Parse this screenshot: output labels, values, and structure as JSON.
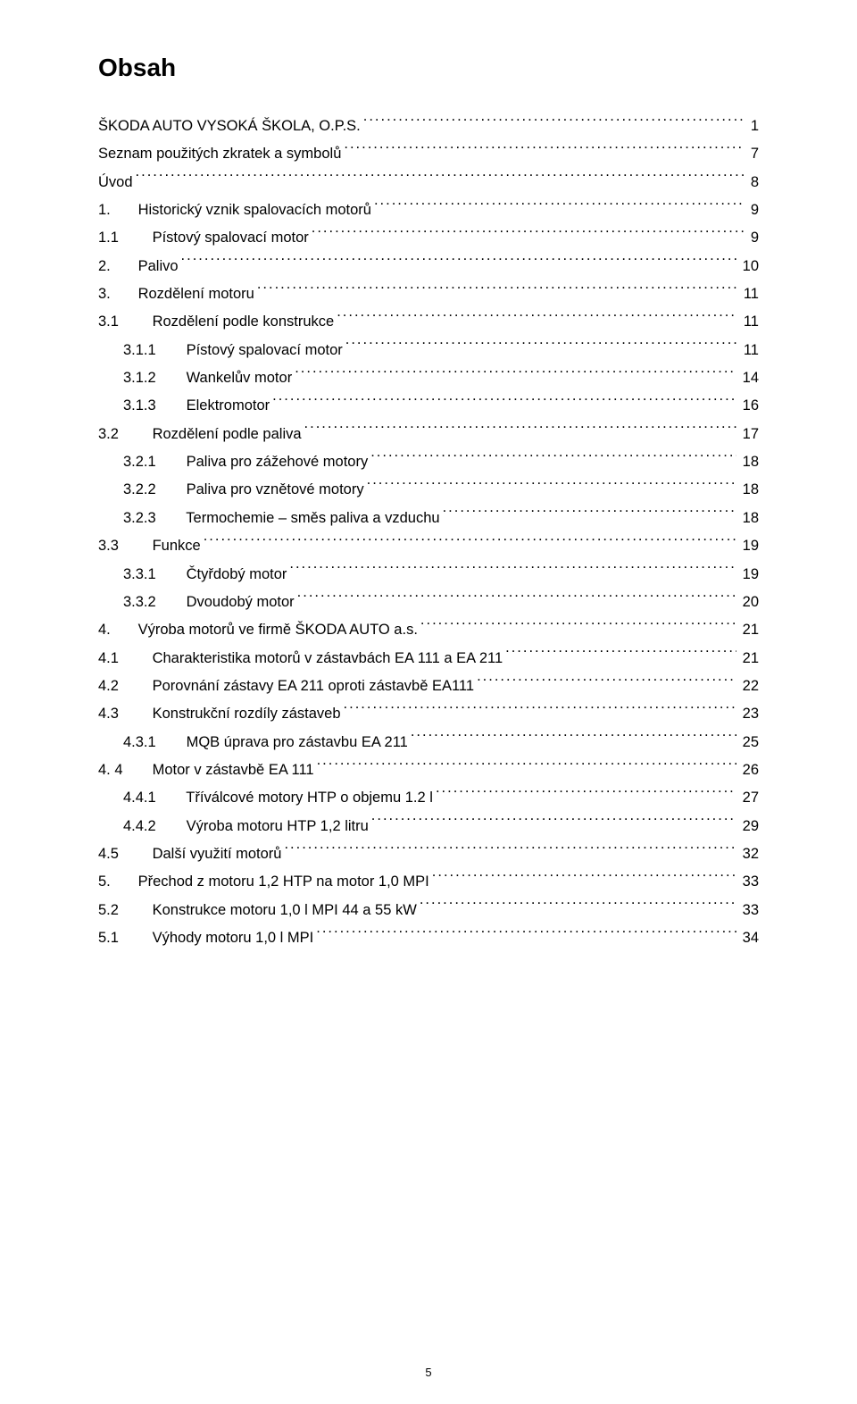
{
  "title": "Obsah",
  "page_number": "5",
  "font": {
    "title_size_pt": 21,
    "body_size_pt": 12,
    "family": "Arial"
  },
  "colors": {
    "text": "#000000",
    "background": "#ffffff"
  },
  "entries": [
    {
      "indent": 0,
      "num": "",
      "label": "ŠKODA AUTO VYSOKÁ ŠKOLA, O.P.S.",
      "page": "1"
    },
    {
      "indent": 0,
      "num": "",
      "label": "Seznam použitých zkratek a symbolů",
      "page": "7"
    },
    {
      "indent": 0,
      "num": "",
      "label": "Úvod",
      "page": "8"
    },
    {
      "indent": 0,
      "num": "1.",
      "label": "Historický vznik spalovacích motorů",
      "page": "9"
    },
    {
      "indent": 1,
      "num": "1.1",
      "label": "Pístový spalovací motor",
      "page": "9"
    },
    {
      "indent": 0,
      "num": "2.",
      "label": "Palivo",
      "page": "10"
    },
    {
      "indent": 0,
      "num": "3.",
      "label": "Rozdělení motoru",
      "page": "11"
    },
    {
      "indent": 1,
      "num": "3.1",
      "label": "Rozdělení podle konstrukce",
      "page": "11"
    },
    {
      "indent": 2,
      "num": "3.1.1",
      "label": "Pístový spalovací motor",
      "page": "11"
    },
    {
      "indent": 2,
      "num": "3.1.2",
      "label": "Wankelův motor",
      "page": "14"
    },
    {
      "indent": 2,
      "num": "3.1.3",
      "label": "Elektromotor",
      "page": "16"
    },
    {
      "indent": 1,
      "num": "3.2",
      "label": "Rozdělení podle paliva",
      "page": "17"
    },
    {
      "indent": 2,
      "num": "3.2.1",
      "label": "Paliva pro zážehové motory",
      "page": "18"
    },
    {
      "indent": 2,
      "num": "3.2.2",
      "label": "Paliva pro vznětové motory",
      "page": "18"
    },
    {
      "indent": 2,
      "num": "3.2.3",
      "label": "Termochemie – směs paliva a vzduchu",
      "page": "18"
    },
    {
      "indent": 1,
      "num": "3.3",
      "label": "Funkce",
      "page": "19"
    },
    {
      "indent": 2,
      "num": "3.3.1",
      "label": "Čtyřdobý motor",
      "page": "19"
    },
    {
      "indent": 2,
      "num": "3.3.2",
      "label": "Dvoudobý motor",
      "page": "20"
    },
    {
      "indent": 0,
      "num": "4.",
      "label": "Výroba motorů ve firmě ŠKODA AUTO a.s.",
      "page": "21"
    },
    {
      "indent": 1,
      "num": "4.1",
      "label": "Charakteristika motorů v zástavbách EA 111 a EA 211",
      "page": "21"
    },
    {
      "indent": 1,
      "num": "4.2",
      "label": "Porovnání zástavy EA 211 oproti zástavbě EA111",
      "page": "22"
    },
    {
      "indent": 1,
      "num": "4.3",
      "label": "Konstrukční rozdíly zástaveb",
      "page": "23"
    },
    {
      "indent": 2,
      "num": "4.3.1",
      "label": "MQB úprava pro zástavbu EA 211",
      "page": "25"
    },
    {
      "indent": 1,
      "num": "4. 4",
      "label": "Motor v zástavbě EA 111",
      "page": "26"
    },
    {
      "indent": 2,
      "num": "4.4.1",
      "label": "Tříválcové motory HTP o objemu 1.2 l",
      "page": "27"
    },
    {
      "indent": 2,
      "num": "4.4.2",
      "label": "Výroba motoru HTP  1,2 litru",
      "page": "29"
    },
    {
      "indent": 1,
      "num": "4.5",
      "label": "Další využití motorů",
      "page": "32"
    },
    {
      "indent": 0,
      "num": "5.",
      "label": "Přechod z motoru 1,2 HTP na motor 1,0 MPI",
      "page": "33"
    },
    {
      "indent": 1,
      "num": "5.2",
      "label": "Konstrukce motoru 1,0 l MPI 44 a 55 kW",
      "page": "33"
    },
    {
      "indent": 1,
      "num": "5.1",
      "label": "Výhody motoru 1,0 l MPI",
      "page": "34"
    }
  ]
}
